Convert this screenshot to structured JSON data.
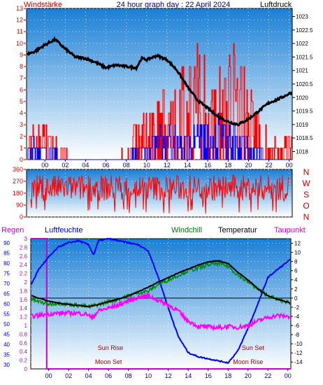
{
  "header": {
    "windstaerke": "Windstärke",
    "title": "24 hour graph day : 22 April 2024",
    "luftdruck": "Luftdruck"
  },
  "wind_dir_letters": [
    "N",
    "W",
    "S",
    "O",
    "N"
  ],
  "legend": {
    "regen": "Regen",
    "luftfeuchte": "Luftfeuchte",
    "windchill": "Windchill",
    "temperatur": "Temperatur",
    "taupunkt": "Taupunkt"
  },
  "annotations": {
    "sun_rise": "Sun Rise",
    "sun_set": "Sun Set",
    "moon_set": "Moon Set",
    "moon_rise": "Moon Rise"
  },
  "colors": {
    "panel_top": "#1a7fd6",
    "panel_bottom": "#ffffff",
    "wind_gust": "#ff0000",
    "wind_avg": "#0000ff",
    "pressure": "#000000",
    "humidity": "#0000ff",
    "temperature": "#000000",
    "windchill": "#008800",
    "dewpoint": "#ff00ff",
    "rain": "#cc00cc"
  },
  "chart_data": [
    {
      "type": "bar",
      "name": "wind-pressure",
      "x_ticks": [
        "00",
        "02",
        "04",
        "06",
        "08",
        "10",
        "12",
        "14",
        "16",
        "18",
        "20",
        "22",
        "00"
      ],
      "y_left_ticks": [
        "0",
        "1",
        "2",
        "3",
        "4",
        "5",
        "6",
        "7",
        "8",
        "9",
        "10",
        "11",
        "12",
        "13"
      ],
      "y_right_ticks": [
        "1018",
        "1018.5",
        "1019",
        "1019.5",
        "1020",
        "1020.5",
        "1021",
        "1021.5",
        "1022",
        "1022.5",
        "1023"
      ],
      "ylim_left": [
        0,
        13
      ],
      "ylim_right": [
        1017.7,
        1023.3
      ],
      "xlim_hours": [
        -1.8,
        24.3
      ],
      "pressure": {
        "hours": [
          -1.8,
          -1,
          0,
          1,
          2,
          3,
          4,
          5,
          6,
          7,
          8,
          9,
          9.5,
          10,
          11,
          12,
          13,
          14,
          15,
          16,
          17,
          18,
          19,
          20,
          21,
          22,
          23,
          24.3
        ],
        "values": [
          1021.6,
          1021.7,
          1021.95,
          1022.15,
          1021.8,
          1021.5,
          1021.45,
          1021.3,
          1021.1,
          1021.2,
          1021.15,
          1021.1,
          1021.45,
          1021.4,
          1021.55,
          1021.4,
          1021.0,
          1020.4,
          1019.9,
          1019.6,
          1019.3,
          1019.1,
          1019.0,
          1019.2,
          1019.5,
          1019.8,
          1019.95,
          1020.2
        ]
      },
      "wind_gust_envelope": {
        "hours": [
          -1.8,
          -1,
          0,
          1,
          2,
          3,
          4,
          5,
          6,
          7,
          8,
          8.5,
          9,
          10,
          11,
          12,
          13,
          14,
          15,
          16,
          17,
          18,
          19,
          20,
          21,
          22,
          23,
          24.3
        ],
        "values": [
          3,
          3,
          3,
          2,
          1,
          0,
          0,
          0,
          0,
          0,
          1,
          3,
          4,
          5,
          6,
          7,
          8,
          9,
          10,
          9,
          9,
          10,
          10,
          7,
          4,
          2,
          2,
          2
        ]
      },
      "wind_avg_envelope": {
        "hours": [
          -1.8,
          0,
          1,
          2,
          3,
          8,
          9,
          10,
          12,
          14,
          15,
          16,
          18,
          19,
          20,
          21,
          22,
          24.3
        ],
        "values": [
          2,
          2,
          1,
          0,
          0,
          0,
          1,
          2,
          3,
          3,
          4,
          4,
          4,
          3,
          2,
          1,
          0,
          0
        ]
      }
    },
    {
      "type": "line",
      "name": "wind-direction",
      "y_ticks": [
        "0",
        "90",
        "180",
        "270",
        "360"
      ],
      "ylim": [
        0,
        360
      ],
      "mean_direction_deg": 220,
      "spread_deg": 100
    },
    {
      "type": "line",
      "name": "temperature-humidity",
      "x_ticks": [
        "00",
        "02",
        "04",
        "06",
        "08",
        "10",
        "12",
        "14",
        "16",
        "18",
        "20",
        "22",
        "00"
      ],
      "y_rain_ticks": [
        "0",
        "0.2",
        "0.4",
        "0.6",
        "0.8",
        "1",
        "1.2",
        "1.4",
        "1.6",
        "1.8",
        "2",
        "2.2",
        "2.4",
        "2.6",
        "2.8",
        "3"
      ],
      "y_hum_ticks": [
        "30",
        "35",
        "40",
        "45",
        "50",
        "55",
        "60",
        "65",
        "70",
        "75",
        "80",
        "85",
        "90"
      ],
      "y_temp_ticks": [
        "-14",
        "-12",
        "-10",
        "-8",
        "-6",
        "-4",
        "-2",
        "0",
        "2",
        "4",
        "6",
        "8",
        "10",
        "12"
      ],
      "ylim_temp": [
        -15.5,
        13
      ],
      "ylim_hum": [
        28,
        92
      ],
      "ylim_rain": [
        0,
        3
      ],
      "zero_line_temp": 0,
      "rain_total": 3,
      "rain_start_hour": -0.2,
      "humidity": {
        "hours": [
          -1.8,
          -1,
          0,
          1,
          2,
          3,
          4,
          4.5,
          5,
          6,
          7,
          8,
          9,
          10,
          11,
          12,
          13,
          14,
          15,
          16,
          17,
          18,
          19,
          20,
          21,
          22,
          23,
          24.3
        ],
        "values": [
          69,
          77,
          83,
          88,
          90,
          91,
          89,
          84,
          91,
          92,
          91,
          90,
          89,
          86,
          73,
          58,
          44,
          36,
          34,
          33,
          32,
          31,
          37,
          48,
          60,
          73,
          77,
          82
        ]
      },
      "temperature": {
        "hours": [
          -1.8,
          -1,
          0,
          1,
          2,
          3,
          4,
          5,
          6,
          7,
          8,
          9,
          10,
          11,
          12,
          13,
          14,
          15,
          16,
          17,
          18,
          19,
          20,
          21,
          22,
          23,
          24.3
        ],
        "values": [
          0.6,
          0,
          -0.7,
          -1.1,
          -1.4,
          -1.6,
          -1.9,
          -1.4,
          -0.8,
          -0.2,
          0.5,
          1.4,
          2.4,
          3.5,
          4.5,
          5.5,
          6.4,
          7.2,
          7.9,
          8.2,
          7.6,
          5.6,
          4.0,
          2.0,
          0.5,
          -0.3,
          -1.1
        ]
      },
      "windchill": {
        "hours": [
          -1.8,
          -1,
          0,
          1,
          2,
          3,
          4,
          5,
          6,
          7,
          8,
          9,
          10,
          11,
          12,
          13,
          14,
          15,
          16,
          17,
          18,
          19,
          20,
          21,
          22,
          23,
          24.3
        ],
        "values": [
          -0.2,
          -0.8,
          -1.3,
          -1.1,
          -1.4,
          -1.6,
          -1.9,
          -1.4,
          -0.8,
          -0.2,
          0.5,
          1.2,
          1.5,
          3.0,
          4.0,
          5.0,
          6.0,
          6.5,
          7.3,
          7.6,
          7.0,
          5.0,
          3.5,
          2.0,
          0.5,
          -0.3,
          -1.1
        ]
      },
      "dewpoint": {
        "hours": [
          -1.8,
          -1,
          0,
          1,
          2,
          3,
          4,
          4.3,
          5,
          6,
          7,
          8,
          9,
          10,
          11,
          12,
          13,
          13.5,
          14,
          15,
          16,
          17,
          18,
          19,
          20,
          21,
          22,
          23,
          24.3
        ],
        "values": [
          -4.0,
          -3.8,
          -3.5,
          -3.3,
          -3.3,
          -3.3,
          -3.6,
          -4.4,
          -2.8,
          -2.2,
          -1.5,
          -0.6,
          0.2,
          0.5,
          -0.5,
          -1.5,
          -2.8,
          -4.0,
          -5.0,
          -6.2,
          -6.3,
          -6.5,
          -6.2,
          -6.4,
          -6.0,
          -5.0,
          -4.2,
          -3.8,
          -4.1
        ]
      },
      "sun_rise_hour": 6.2,
      "sun_set_hour": 20.5,
      "moon_set_hour": 6.0,
      "moon_rise_hour": 20.0
    }
  ]
}
